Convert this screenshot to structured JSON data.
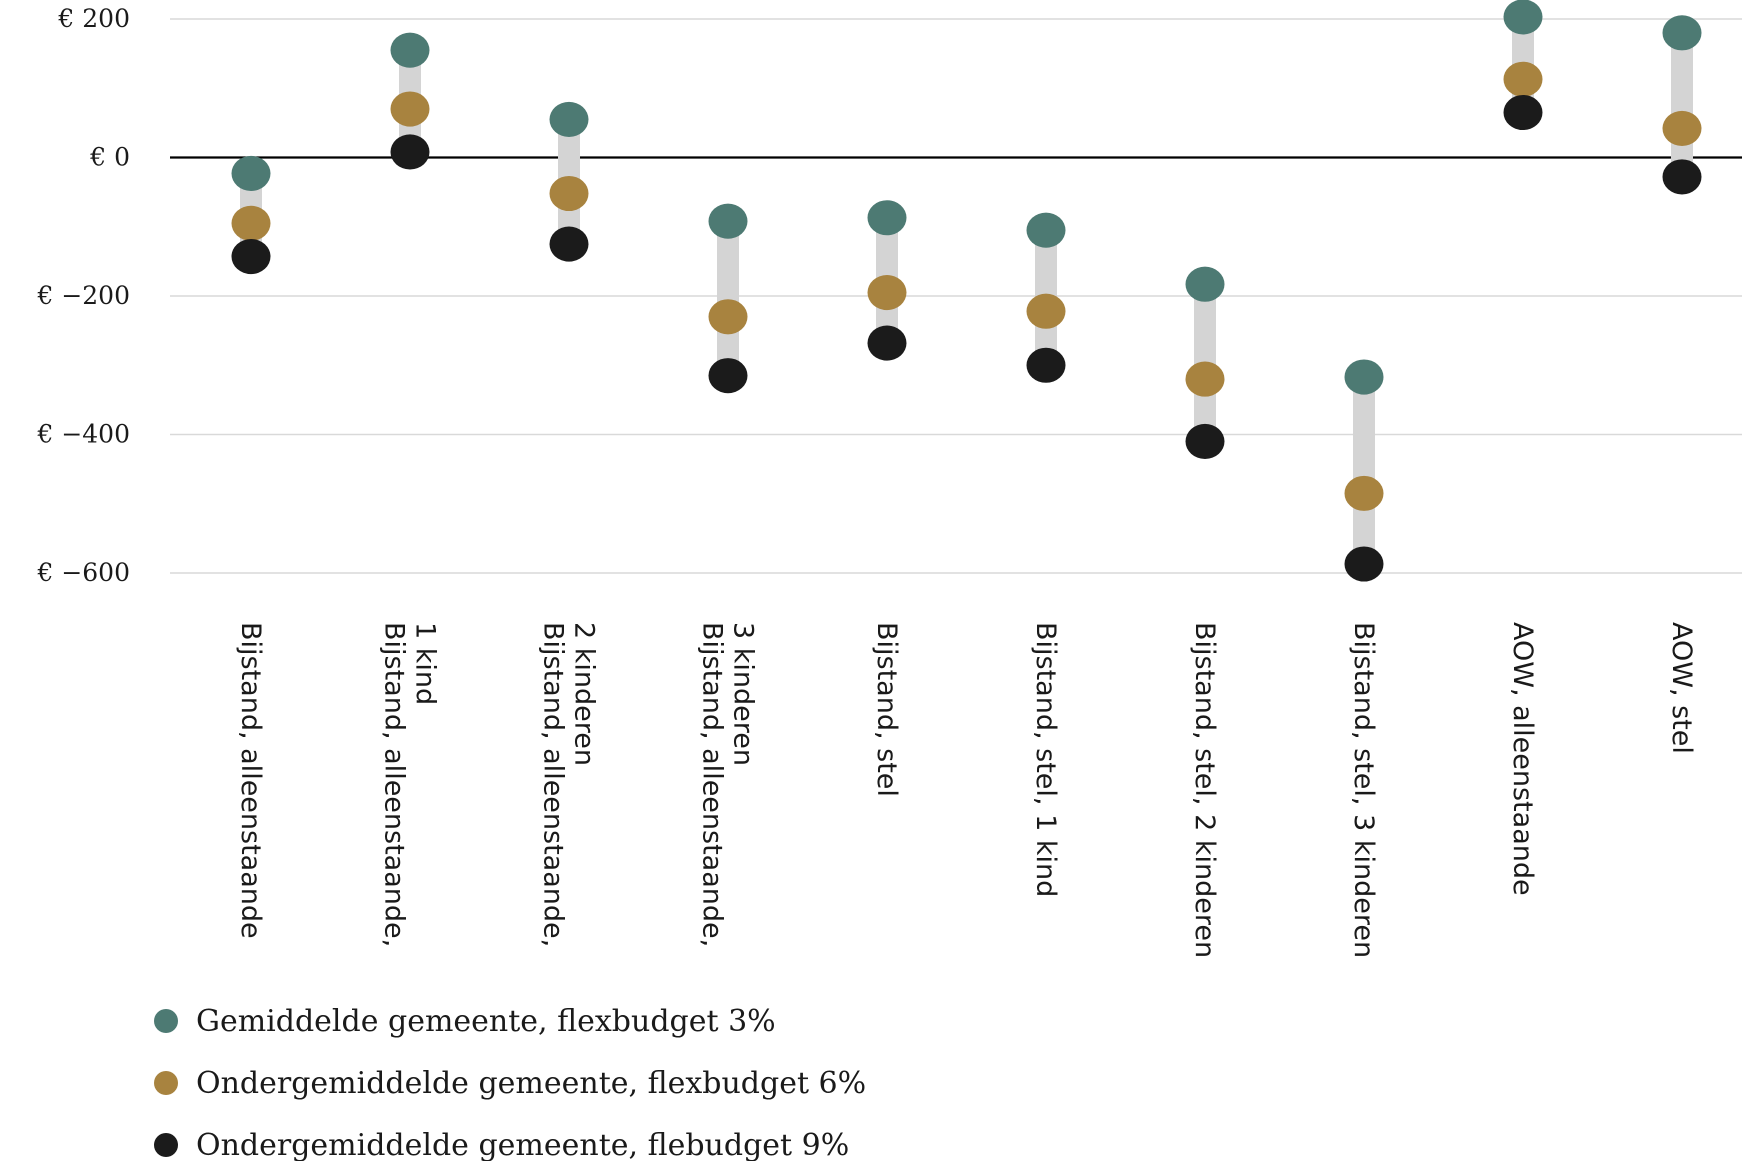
{
  "chart_data": {
    "type": "dot-range",
    "title": "",
    "xlabel": "",
    "ylabel": "",
    "ylim": [
      -600,
      200
    ],
    "yticks": [
      200,
      0,
      -200,
      -400,
      -600
    ],
    "ytick_labels": [
      "€ 200",
      "€ 0",
      "€ −200",
      "€ −400",
      "€ −600"
    ],
    "grid": true,
    "legend_position": "bottom-left",
    "categories": [
      [
        "Bijstand, alleenstaande"
      ],
      [
        "Bijstand, alleenstaande,",
        "1 kind"
      ],
      [
        "Bijstand, alleenstaande,",
        "2 kinderen"
      ],
      [
        "Bijstand, alleenstaande,",
        "3 kinderen"
      ],
      [
        "Bijstand, stel"
      ],
      [
        "Bijstand, stel, 1 kind"
      ],
      [
        "Bijstand, stel, 2 kinderen"
      ],
      [
        "Bijstand, stel, 3 kinderen"
      ],
      [
        "AOW, alleenstaande"
      ],
      [
        "AOW, stel"
      ]
    ],
    "series": [
      {
        "name": "Gemiddelde gemeente, flexbudget 3%",
        "color": "#4d7a73",
        "values": [
          -23,
          155,
          55,
          -92,
          -87,
          -105,
          -183,
          -317,
          203,
          180
        ]
      },
      {
        "name": "Ondergemiddelde gemeente, flexbudget 6%",
        "color": "#a8833f",
        "values": [
          -95,
          70,
          -52,
          -230,
          -195,
          -222,
          -320,
          -485,
          113,
          42
        ]
      },
      {
        "name": "Ondergemiddelde gemeente, flebudget 9%",
        "color": "#1b1b1b",
        "values": [
          -143,
          8,
          -125,
          -315,
          -268,
          -300,
          -410,
          -587,
          65,
          -28
        ]
      }
    ],
    "colors": {
      "range_bar": "#d4d4d4",
      "gridline": "#d9d9d9",
      "zero_line": "#000000"
    }
  }
}
